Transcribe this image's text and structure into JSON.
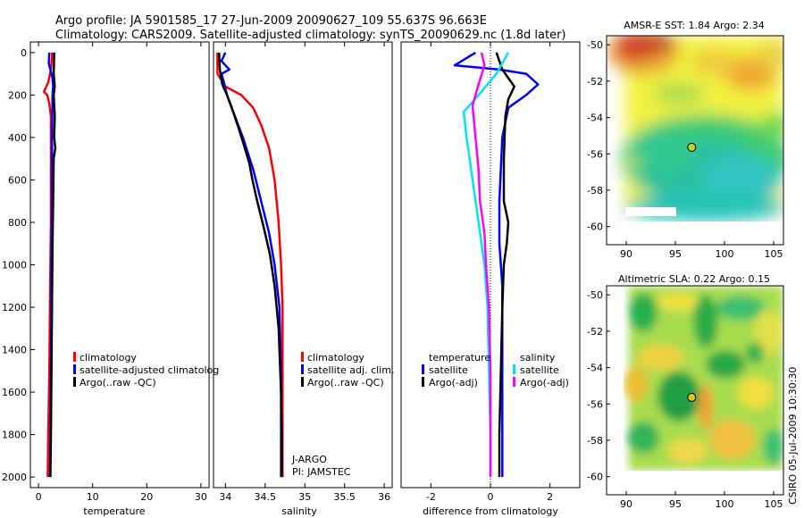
{
  "title": {
    "line1": "Argo profile: JA 5901585_17 27-Jun-2009 20090627_109 55.637S 96.663E",
    "line2": "Climatology: CARS2009. Satellite-adjusted climatology: synTS_20090629.nc (1.8d later)"
  },
  "credit": "CSIRO 05-Jul-2009 10:30:30",
  "colors": {
    "climatology": "#ff0000",
    "satellite": "#0000ff",
    "argo": "#000000",
    "salinity_satellite": "#00e5ee",
    "salinity_argo": "#ff00ff"
  },
  "chart_data": [
    {
      "type": "line",
      "name": "temperature-profile",
      "xlabel": "temperature",
      "ylabel": "",
      "xlim": [
        -1.5,
        31.5
      ],
      "ylim": [
        2050,
        -50
      ],
      "xticks": [
        0,
        10,
        20,
        30
      ],
      "xtick_labels": [
        "0",
        "10",
        "20",
        "30"
      ],
      "yticks": [
        0,
        200,
        400,
        600,
        800,
        1000,
        1200,
        1400,
        1600,
        1800,
        2000
      ],
      "ytick_labels": [
        "0",
        "200",
        "400",
        "600",
        "800",
        "1000",
        "1200",
        "1400",
        "1600",
        "1800",
        "2000"
      ],
      "series": [
        {
          "name": "climatology",
          "color": "#ff0000",
          "points": [
            [
              2.5,
              0
            ],
            [
              2.5,
              20
            ],
            [
              2.3,
              80
            ],
            [
              1.8,
              140
            ],
            [
              1.0,
              185
            ],
            [
              1.6,
              200
            ],
            [
              2.0,
              240
            ],
            [
              2.3,
              300
            ],
            [
              2.3,
              500
            ],
            [
              2.3,
              800
            ],
            [
              2.2,
              1000
            ],
            [
              2.0,
              1500
            ],
            [
              1.8,
              1800
            ],
            [
              1.7,
              2000
            ]
          ]
        },
        {
          "name": "satellite-adjusted climatology",
          "color": "#0000ff",
          "points": [
            [
              2.0,
              0
            ],
            [
              1.9,
              50
            ],
            [
              2.6,
              120
            ],
            [
              2.7,
              160
            ],
            [
              2.6,
              200
            ],
            [
              2.5,
              400
            ],
            [
              2.5,
              700
            ],
            [
              2.4,
              1000
            ],
            [
              2.3,
              1500
            ],
            [
              2.2,
              1800
            ],
            [
              2.1,
              2000
            ]
          ]
        },
        {
          "name": "Argo(..raw -QC)",
          "color": "#000000",
          "points": [
            [
              2.9,
              0
            ],
            [
              2.8,
              100
            ],
            [
              3.0,
              160
            ],
            [
              2.8,
              200
            ],
            [
              3.0,
              300
            ],
            [
              2.9,
              400
            ],
            [
              3.1,
              450
            ],
            [
              2.8,
              500
            ],
            [
              2.7,
              700
            ],
            [
              2.6,
              900
            ],
            [
              2.5,
              1200
            ],
            [
              2.4,
              1500
            ],
            [
              2.3,
              1800
            ],
            [
              2.2,
              2000
            ]
          ]
        }
      ],
      "legend_entries": [
        "climatology",
        "satellite-adjusted climatolog",
        "Argo(..raw -QC)"
      ],
      "legend": "lower-middle"
    },
    {
      "type": "line",
      "name": "salinity-profile",
      "xlabel": "salinity",
      "xlim": [
        33.85,
        36.1
      ],
      "ylim": [
        2050,
        -50
      ],
      "xticks": [
        34,
        34.5,
        35,
        35.5,
        36
      ],
      "xtick_labels": [
        "34",
        "34.5",
        "35",
        "35.5",
        "36"
      ],
      "series": [
        {
          "name": "climatology",
          "color": "#ff0000",
          "points": [
            [
              33.9,
              0
            ],
            [
              33.9,
              100
            ],
            [
              34.0,
              160
            ],
            [
              34.2,
              200
            ],
            [
              34.35,
              260
            ],
            [
              34.45,
              340
            ],
            [
              34.55,
              450
            ],
            [
              34.62,
              600
            ],
            [
              34.67,
              800
            ],
            [
              34.7,
              1000
            ],
            [
              34.72,
              1200
            ],
            [
              34.72,
              1500
            ],
            [
              34.72,
              1800
            ],
            [
              34.72,
              2000
            ]
          ]
        },
        {
          "name": "satellite adj. clim.",
          "color": "#0000ff",
          "points": [
            [
              34.0,
              0
            ],
            [
              33.95,
              40
            ],
            [
              34.05,
              80
            ],
            [
              33.95,
              100
            ],
            [
              33.98,
              140
            ],
            [
              34.02,
              200
            ],
            [
              34.1,
              280
            ],
            [
              34.22,
              400
            ],
            [
              34.35,
              550
            ],
            [
              34.45,
              700
            ],
            [
              34.55,
              850
            ],
            [
              34.62,
              1000
            ],
            [
              34.68,
              1200
            ],
            [
              34.7,
              1500
            ],
            [
              34.7,
              1800
            ],
            [
              34.7,
              2000
            ]
          ]
        },
        {
          "name": "Argo(..raw -QC)",
          "color": "#000000",
          "points": [
            [
              33.92,
              0
            ],
            [
              33.93,
              80
            ],
            [
              33.96,
              150
            ],
            [
              34.02,
              200
            ],
            [
              34.08,
              260
            ],
            [
              34.16,
              350
            ],
            [
              34.22,
              420
            ],
            [
              34.3,
              520
            ],
            [
              34.34,
              600
            ],
            [
              34.4,
              700
            ],
            [
              34.48,
              820
            ],
            [
              34.56,
              950
            ],
            [
              34.62,
              1100
            ],
            [
              34.67,
              1300
            ],
            [
              34.7,
              1600
            ],
            [
              34.71,
              1800
            ],
            [
              34.71,
              2000
            ]
          ]
        }
      ],
      "legend_entries": [
        "climatology",
        "satellite adj. clim.",
        "Argo(..raw -QC)"
      ],
      "legend": "lower-middle",
      "annotations": [
        "J-ARGO",
        "PI: JAMSTEC"
      ]
    },
    {
      "type": "line",
      "name": "difference-profile",
      "xlabel": "difference from climatology",
      "xlim": [
        -3,
        3
      ],
      "ylim": [
        2050,
        -50
      ],
      "xticks": [
        -2,
        0,
        2
      ],
      "xtick_labels": [
        "-2",
        "0",
        "2"
      ],
      "zero_line": true,
      "series": [
        {
          "name": "temperature satellite",
          "color": "#0000ff",
          "points": [
            [
              -0.5,
              0
            ],
            [
              -1.2,
              60
            ],
            [
              0.3,
              80
            ],
            [
              1.2,
              100
            ],
            [
              1.6,
              150
            ],
            [
              1.2,
              200
            ],
            [
              0.6,
              260
            ],
            [
              0.4,
              400
            ],
            [
              0.3,
              700
            ],
            [
              0.3,
              900
            ],
            [
              0.4,
              1100
            ],
            [
              0.4,
              1400
            ],
            [
              0.4,
              1700
            ],
            [
              0.4,
              2000
            ]
          ]
        },
        {
          "name": "temperature Argo(-adj)",
          "color": "#000000",
          "points": [
            [
              0.2,
              0
            ],
            [
              0.4,
              80
            ],
            [
              0.8,
              160
            ],
            [
              0.6,
              220
            ],
            [
              0.5,
              300
            ],
            [
              0.45,
              500
            ],
            [
              0.45,
              700
            ],
            [
              0.6,
              800
            ],
            [
              0.55,
              900
            ],
            [
              0.45,
              1000
            ],
            [
              0.4,
              1200
            ],
            [
              0.35,
              1500
            ],
            [
              0.3,
              1800
            ],
            [
              0.3,
              2000
            ]
          ]
        },
        {
          "name": "salinity satellite",
          "color": "#00e5ee",
          "points": [
            [
              0.6,
              0
            ],
            [
              0.4,
              50
            ],
            [
              0.2,
              100
            ],
            [
              -0.4,
              200
            ],
            [
              -0.9,
              280
            ],
            [
              -0.8,
              400
            ],
            [
              -0.6,
              600
            ],
            [
              -0.4,
              800
            ],
            [
              -0.2,
              1000
            ],
            [
              -0.1,
              1200
            ],
            [
              -0.05,
              1500
            ],
            [
              0.0,
              1800
            ],
            [
              0.0,
              2000
            ]
          ]
        },
        {
          "name": "salinity Argo(-adj)",
          "color": "#ff00ff",
          "points": [
            [
              -0.3,
              0
            ],
            [
              -0.2,
              60
            ],
            [
              -0.4,
              150
            ],
            [
              -0.6,
              250
            ],
            [
              -0.5,
              400
            ],
            [
              -0.4,
              550
            ],
            [
              -0.35,
              700
            ],
            [
              -0.2,
              850
            ],
            [
              -0.15,
              1000
            ],
            [
              -0.05,
              1200
            ],
            [
              0.0,
              1500
            ],
            [
              0.0,
              2000
            ]
          ]
        }
      ],
      "legend_headers": [
        "temperature",
        "salinity"
      ],
      "legend_entries": [
        {
          "group": "temperature",
          "label": "satellite"
        },
        {
          "group": "temperature",
          "label": "Argo(-adj)"
        },
        {
          "group": "salinity",
          "label": "satellite"
        },
        {
          "group": "salinity",
          "label": "Argo(-adj)"
        }
      ],
      "legend": "lower-middle"
    },
    {
      "type": "heatmap",
      "name": "amsr-e-sst-map",
      "title": "AMSR-E SST: 1.84 Argo: 2.34",
      "xlim": [
        88,
        106
      ],
      "ylim": [
        -61,
        -49.5
      ],
      "xticks": [
        90,
        95,
        100,
        105
      ],
      "xtick_labels": [
        "90",
        "95",
        "100",
        "105"
      ],
      "yticks": [
        -50,
        -52,
        -54,
        -56,
        -58,
        -60
      ],
      "ytick_labels": [
        "-50",
        "-52",
        "-54",
        "-56",
        "-58",
        "-60"
      ],
      "marker": {
        "lon": 96.663,
        "lat": -55.637
      }
    },
    {
      "type": "heatmap",
      "name": "altimetric-sla-map",
      "title": "Altimetric SLA: 0.22 Argo: 0.15",
      "xlim": [
        88,
        106
      ],
      "ylim": [
        -61,
        -49.5
      ],
      "xticks": [
        90,
        95,
        100,
        105
      ],
      "xtick_labels": [
        "90",
        "95",
        "100",
        "105"
      ],
      "yticks": [
        -50,
        -52,
        -54,
        -56,
        -58,
        -60
      ],
      "ytick_labels": [
        "-50",
        "-52",
        "-54",
        "-56",
        "-58",
        "-60"
      ],
      "marker": {
        "lon": 96.663,
        "lat": -55.637
      }
    }
  ]
}
